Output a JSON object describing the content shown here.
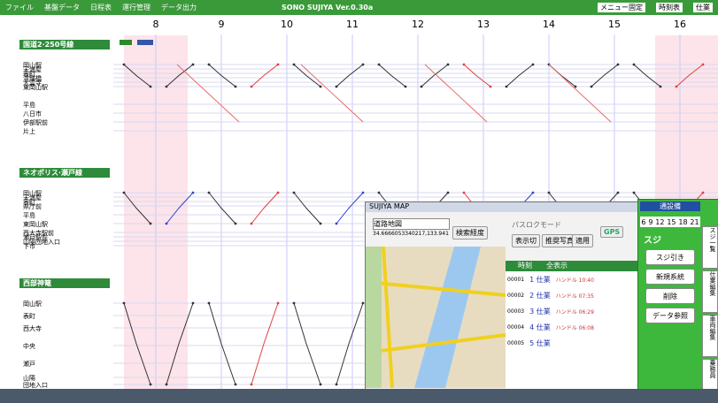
{
  "toolbar": {
    "menu": [
      "ファイル",
      "基盤データ",
      "日程表",
      "運行管理",
      "データ出力"
    ],
    "title": "SONO SUJIYA Ver.0.30a",
    "right": [
      "メニュー固定",
      "時刻表",
      "仕業"
    ]
  },
  "timeline": {
    "hours": [
      "8",
      "9",
      "10",
      "11",
      "12",
      "13",
      "14",
      "15",
      "16"
    ]
  },
  "routes": [
    {
      "name": "国道2·250号線",
      "stations": [
        "岡山駅",
        "天満屋",
        "表町",
        "清輝橋",
        "大雲寺",
        "東岡山駅",
        "平島",
        "八日市",
        "伊部駅前",
        "片上"
      ]
    },
    {
      "name": "ネオポリス·瀬戸線",
      "stations": [
        "岡山駅",
        "天満屋",
        "表町",
        "県庁前",
        "平島",
        "東岡山駅",
        "西大寺駅前",
        "瀬戸駅前",
        "山陽団地入口",
        "下市"
      ]
    },
    {
      "name": "西部神篭",
      "stations": [
        "岡山駅",
        "表町",
        "西大寺",
        "中央",
        "瀬戸",
        "山陽",
        "団地入口"
      ]
    }
  ],
  "map": {
    "title": "SUJIYA MAP",
    "layer": "道路地図",
    "coords": "34.6666053340217,133.941",
    "search": "検索経度",
    "mode": "パスロクモード",
    "buttons": [
      "表示切",
      "推奨写真",
      "適用"
    ],
    "gps": "GPS",
    "list_header": [
      "時刻",
      "全表示"
    ],
    "items": [
      {
        "id": "00001",
        "name": "1 仕業",
        "detail": "ハンドル 10:40"
      },
      {
        "id": "00002",
        "name": "2 仕業",
        "detail": "ハンドル 07:35"
      },
      {
        "id": "00003",
        "name": "3 仕業",
        "detail": "ハンドル 06:29"
      },
      {
        "id": "00004",
        "name": "4 仕業",
        "detail": "ハンドル 06:08"
      },
      {
        "id": "00005",
        "name": "5 仕業",
        "detail": ""
      }
    ]
  },
  "panel": {
    "title": "通設備",
    "hours": [
      "6",
      "9",
      "12",
      "15",
      "18",
      "21"
    ],
    "suji": "スジ",
    "buttons": [
      "スジ引き",
      "新規系統",
      "削除",
      "データ参照"
    ],
    "tabs": [
      "スジ一覧",
      "仕業編集",
      "車両編集",
      "乗務員"
    ]
  }
}
